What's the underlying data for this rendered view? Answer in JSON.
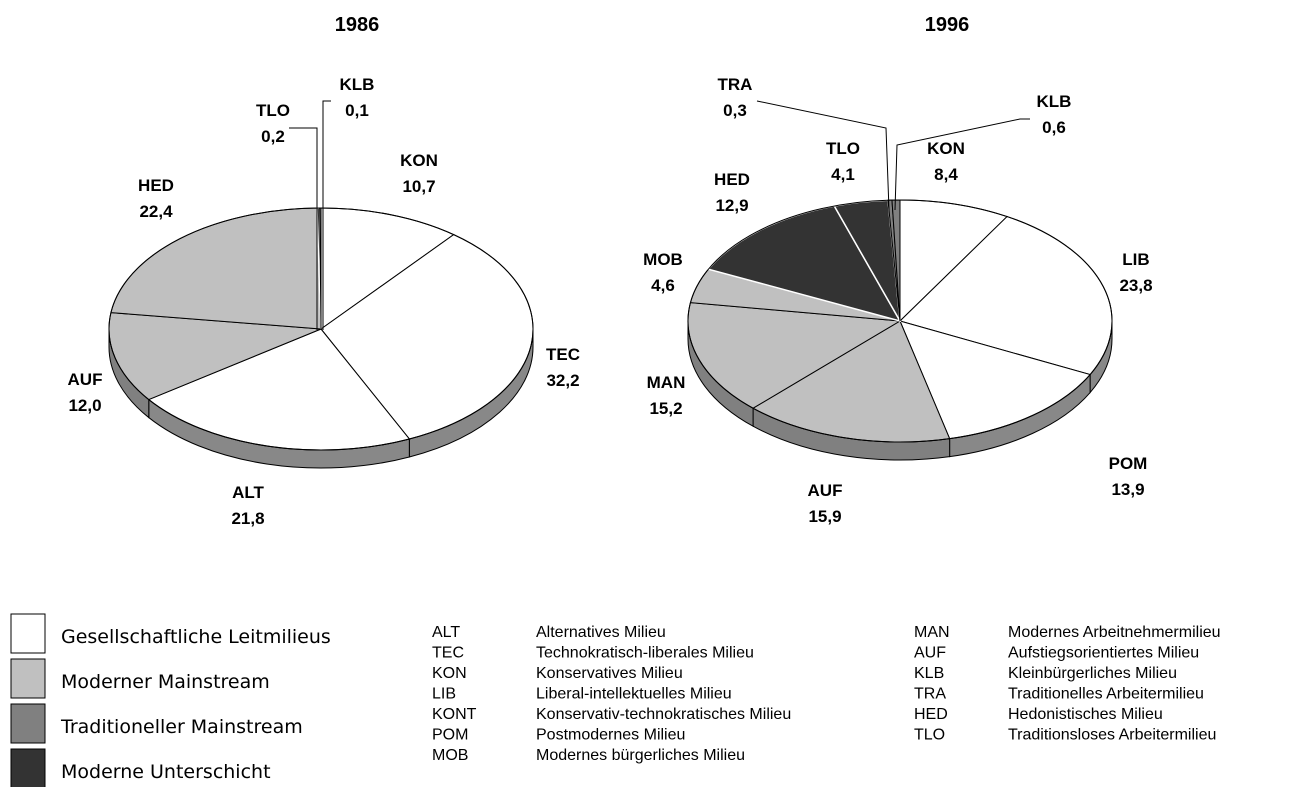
{
  "chart_data": [
    {
      "type": "pie",
      "title": "1986",
      "slices": [
        {
          "code": "KON",
          "value": "10,7",
          "group": "leit"
        },
        {
          "code": "TEC",
          "value": "32,2",
          "group": "leit"
        },
        {
          "code": "ALT",
          "value": "21,8",
          "group": "leit"
        },
        {
          "code": "AUF",
          "value": "12,0",
          "group": "mainstream"
        },
        {
          "code": "HED",
          "value": "22,4",
          "group": "mainstream"
        },
        {
          "code": "TLO",
          "value": "0,2",
          "group": "unterschicht"
        },
        {
          "code": "KLB",
          "value": "0,1",
          "group": "traditionell"
        }
      ]
    },
    {
      "type": "pie",
      "title": "1996",
      "slices": [
        {
          "code": "KON",
          "value": "8,4",
          "group": "leit"
        },
        {
          "code": "LIB",
          "value": "23,8",
          "group": "leit"
        },
        {
          "code": "POM",
          "value": "13,9",
          "group": "leit"
        },
        {
          "code": "AUF",
          "value": "15,9",
          "group": "mainstream"
        },
        {
          "code": "MAN",
          "value": "15,2",
          "group": "mainstream"
        },
        {
          "code": "MOB",
          "value": "4,6",
          "group": "mainstream"
        },
        {
          "code": "HED",
          "value": "12,9",
          "group": "unterschicht"
        },
        {
          "code": "TLO",
          "value": "4,1",
          "group": "unterschicht"
        },
        {
          "code": "TRA",
          "value": "0,3",
          "group": "traditionell"
        },
        {
          "code": "KLB",
          "value": "0,6",
          "group": "traditionell"
        }
      ]
    }
  ],
  "legend": {
    "groups": [
      {
        "key": "leit",
        "label": "Gesellschaftliche Leitmilieus",
        "color": "#ffffff"
      },
      {
        "key": "mainstream",
        "label": "Moderner Mainstream",
        "color": "#c0c0c0"
      },
      {
        "key": "traditionell",
        "label": "Traditioneller Mainstream",
        "color": "#808080"
      },
      {
        "key": "unterschicht",
        "label": "Moderne Unterschicht",
        "color": "#333333"
      }
    ],
    "abbreviations_left": [
      {
        "code": "ALT",
        "name": "Alternatives Milieu"
      },
      {
        "code": "TEC",
        "name": "Technokratisch-liberales Milieu"
      },
      {
        "code": "KON",
        "name": "Konservatives Milieu"
      },
      {
        "code": "LIB",
        "name": "Liberal-intellektuelles Milieu"
      },
      {
        "code": "KONT",
        "name": "Konservativ-technokratisches Milieu"
      },
      {
        "code": "POM",
        "name": "Postmodernes Milieu"
      },
      {
        "code": "MOB",
        "name": "Modernes bürgerliches Milieu"
      }
    ],
    "abbreviations_right": [
      {
        "code": "MAN",
        "name": "Modernes Arbeitnehmermilieu"
      },
      {
        "code": "AUF",
        "name": "Aufstiegsorientiertes Milieu"
      },
      {
        "code": "KLB",
        "name": "Kleinbürgerliches Milieu"
      },
      {
        "code": "TRA",
        "name": "Traditionelles Arbeitermilieu"
      },
      {
        "code": "HED",
        "name": "Hedonistisches Milieu"
      },
      {
        "code": "TLO",
        "name": "Traditionsloses Arbeitermilieu"
      }
    ]
  }
}
